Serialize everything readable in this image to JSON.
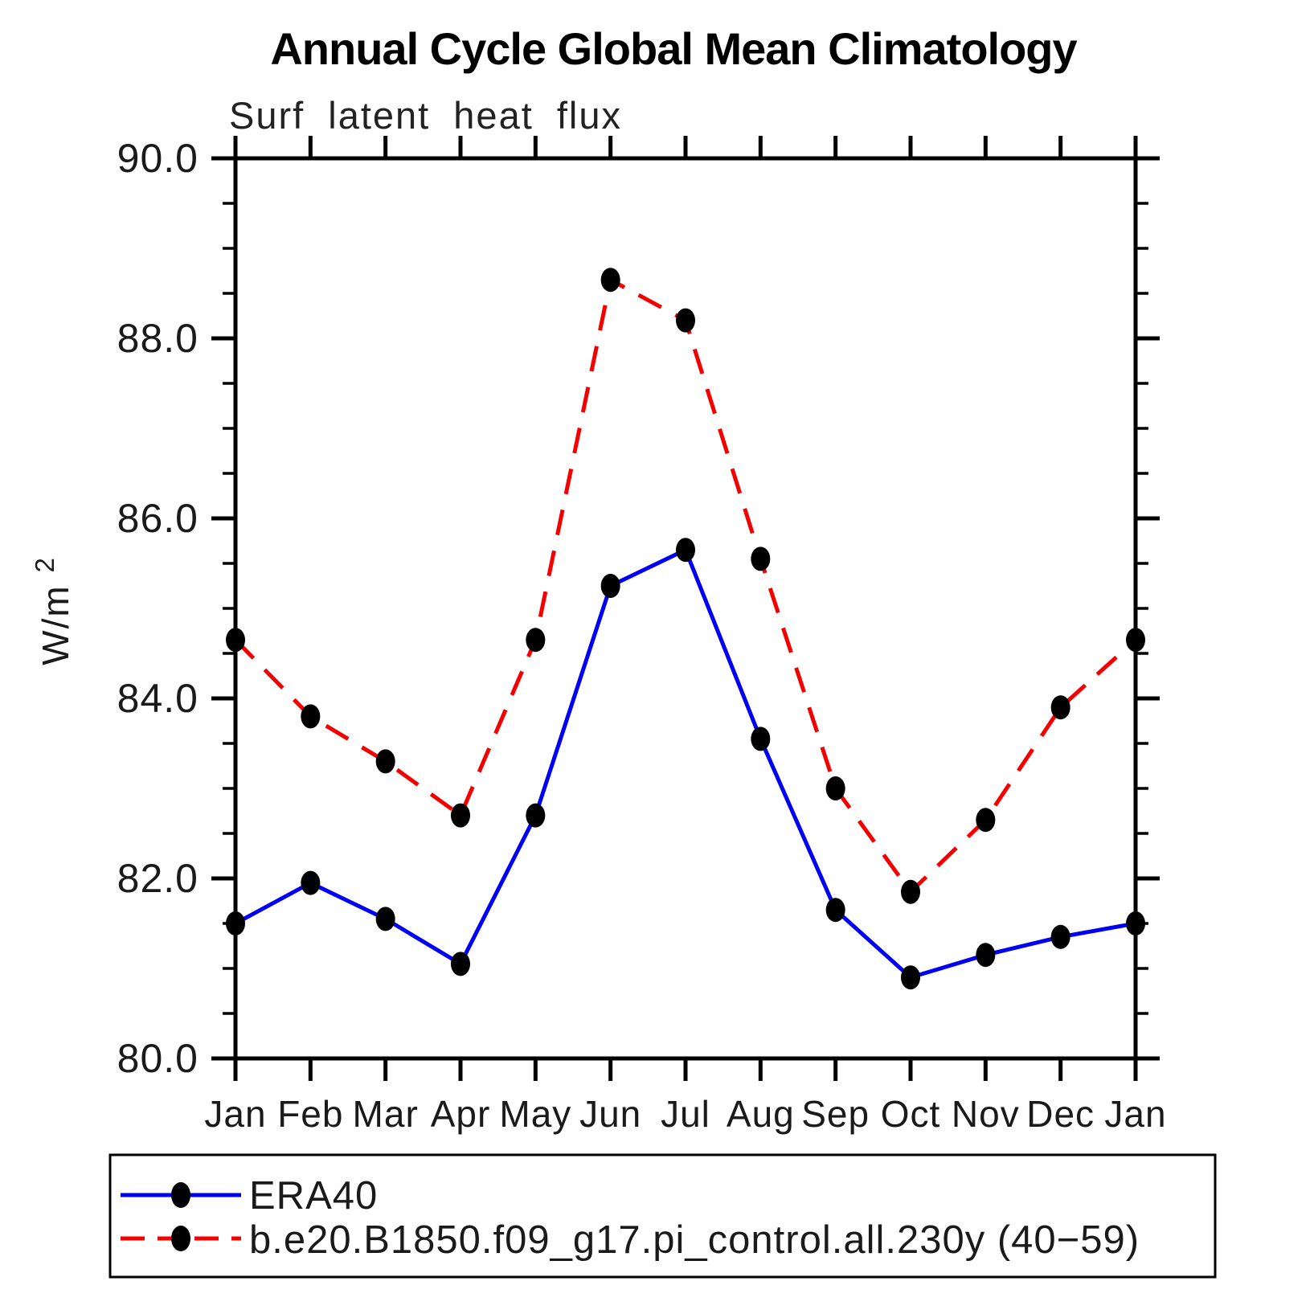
{
  "chart_data": {
    "type": "line",
    "title": "Annual Cycle Global Mean Climatology",
    "subtitle": "Surf latent heat flux",
    "ylabel": "W/m",
    "ylabel_sup": "2",
    "categories": [
      "Jan",
      "Feb",
      "Mar",
      "Apr",
      "May",
      "Jun",
      "Jul",
      "Aug",
      "Sep",
      "Oct",
      "Nov",
      "Dec",
      "Jan"
    ],
    "series": [
      {
        "name": "ERA40",
        "line_style": "solid",
        "color": "#0000f5",
        "marker_color": "#000000",
        "values": [
          81.5,
          81.95,
          81.55,
          81.05,
          82.7,
          85.25,
          85.65,
          83.55,
          81.65,
          80.9,
          81.15,
          81.35,
          81.5
        ]
      },
      {
        "name": "b.e20.B1850.f09_g17.pi_control.all.230y (40−59)",
        "line_style": "dashed",
        "color": "#f50000",
        "marker_color": "#000000",
        "values": [
          84.65,
          83.8,
          83.3,
          82.7,
          84.65,
          88.65,
          88.2,
          85.55,
          83.0,
          81.85,
          82.65,
          83.9,
          84.65
        ]
      }
    ],
    "ylim": [
      80.0,
      90.0
    ],
    "ytick_major_step": 2.0,
    "ytick_minor_step": 0.5,
    "ytick_labels": [
      "80.0",
      "82.0",
      "84.0",
      "86.0",
      "88.0",
      "90.0"
    ],
    "grid": false,
    "legend_position": "bottom-box",
    "axis_color": "#000000",
    "background_color": "#ffffff"
  }
}
